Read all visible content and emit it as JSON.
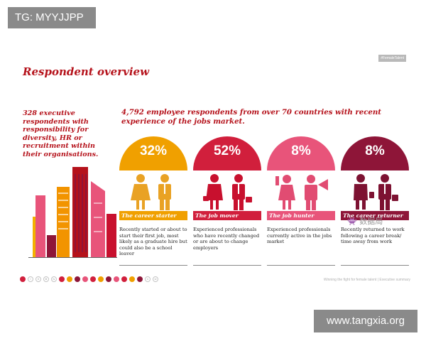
{
  "watermark_top": "TG: MYYJJPP",
  "watermark_bottom": "www.tangxia.org",
  "wechat_mark": "👾 数据局",
  "slide": {
    "tag": "#FemaleTalent",
    "title": "Respondent overview",
    "left_text": "328 executive respondents with responsibility for diversity, HR or recruitment within their organisations.",
    "right_heading": "4,792 employee respondents from over 70 countries with recent experience of the jobs market.",
    "footer": "Winning the fight for female talent | Executive summary"
  },
  "segments": [
    {
      "percent": "32%",
      "label": "The career starter",
      "description": "Recently started or about to start their first job, most likely as a graduate hire but could also be a school leaver",
      "color": "#f0a000",
      "people_color": "#e9a224"
    },
    {
      "percent": "52%",
      "label": "The job mover",
      "description": "Experienced professionals who have recently changed or are about to change employers",
      "color": "#d11f3c",
      "people_color": "#c8102e"
    },
    {
      "percent": "8%",
      "label": "The job hunter",
      "description": "Experienced professionals currently active in the jobs market",
      "color": "#e8547a",
      "people_color": "#e14c72"
    },
    {
      "percent": "8%",
      "label": "The career returner",
      "description": "Recently returned to work following a career break/ time away from work",
      "color": "#8e1538",
      "people_color": "#7d1232"
    }
  ],
  "nav": {
    "dots": [
      {
        "type": "home",
        "color": "#d11f3c"
      },
      {
        "type": "empty",
        "label": "i"
      },
      {
        "type": "empty",
        "label": "ii"
      },
      {
        "type": "empty",
        "label": "iii"
      },
      {
        "type": "empty",
        "label": "iv"
      },
      {
        "type": "filled",
        "color": "#d11f3c"
      },
      {
        "type": "filled",
        "color": "#f0a000"
      },
      {
        "type": "filled",
        "color": "#8e1538"
      },
      {
        "type": "filled",
        "color": "#e8547a"
      },
      {
        "type": "filled",
        "color": "#d11f3c"
      },
      {
        "type": "filled",
        "color": "#f0a000"
      },
      {
        "type": "filled",
        "color": "#8e1538"
      },
      {
        "type": "filled",
        "color": "#e8547a"
      },
      {
        "type": "filled",
        "color": "#d11f3c"
      },
      {
        "type": "filled",
        "color": "#f0a000"
      },
      {
        "type": "filled",
        "color": "#8e1538"
      },
      {
        "type": "empty",
        "label": "v"
      },
      {
        "type": "empty",
        "label": "vi"
      }
    ]
  }
}
